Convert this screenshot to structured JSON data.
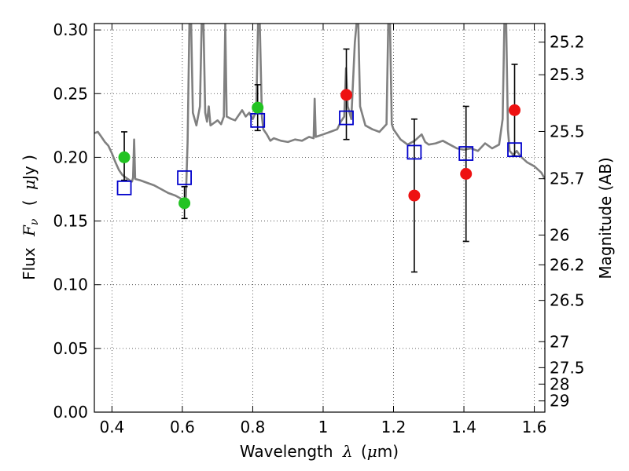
{
  "chart_data": {
    "type": "scatter",
    "xlabel_prefix": "Wavelength",
    "xlabel_symbol": "λ",
    "xlabel_unit_open": "(",
    "xlabel_unit_mu": "μ",
    "xlabel_unit_rest": "m)",
    "ylabel_prefix": "Flux",
    "ylabel_symbol": "F",
    "ylabel_subscript": "ν",
    "ylabel_unit_open": "(",
    "ylabel_unit_mu": "μ",
    "ylabel_unit_rest": "Jy )",
    "y2label": "Magnitude (AB)",
    "xlim": [
      0.35,
      1.63
    ],
    "ylim": [
      0.0,
      0.305
    ],
    "grid": true,
    "x_ticks": [
      0.4,
      0.6,
      0.8,
      1.0,
      1.2,
      1.4,
      1.6
    ],
    "x_tick_labels": [
      "0.4",
      "0.6",
      "0.8",
      "1",
      "1.2",
      "1.4",
      "1.6"
    ],
    "y_ticks": [
      0.0,
      0.05,
      0.1,
      0.15,
      0.2,
      0.25,
      0.3
    ],
    "y_tick_labels": [
      "0.00",
      "0.05",
      "0.10",
      "0.15",
      "0.20",
      "0.25",
      "0.30"
    ],
    "y2_ticks": [
      {
        "label": "25.2",
        "flux": 0.2904
      },
      {
        "label": "25.3",
        "flux": 0.2648
      },
      {
        "label": "25.5",
        "flux": 0.2203
      },
      {
        "label": "25.7",
        "flux": 0.1832
      },
      {
        "label": "26",
        "flux": 0.139
      },
      {
        "label": "26.2",
        "flux": 0.1156
      },
      {
        "label": "26.5",
        "flux": 0.0877
      },
      {
        "label": "27",
        "flux": 0.0553
      },
      {
        "label": "27.5",
        "flux": 0.0349
      },
      {
        "label": "28",
        "flux": 0.022
      },
      {
        "label": "29",
        "flux": 0.0088
      }
    ],
    "observed_green": {
      "color": "#22c322",
      "points": [
        {
          "x": 0.435,
          "y": 0.2,
          "err_lo": 0.018,
          "err_hi": 0.02
        },
        {
          "x": 0.606,
          "y": 0.164,
          "err_lo": 0.012,
          "err_hi": 0.013
        },
        {
          "x": 0.814,
          "y": 0.239,
          "err_lo": 0.018,
          "err_hi": 0.018
        }
      ]
    },
    "observed_red": {
      "color": "#ee1111",
      "points": [
        {
          "x": 1.066,
          "y": 0.249,
          "err_lo": 0.035,
          "err_hi": 0.036
        },
        {
          "x": 1.259,
          "y": 0.17,
          "err_lo": 0.06,
          "err_hi": 0.06
        },
        {
          "x": 1.406,
          "y": 0.187,
          "err_lo": 0.053,
          "err_hi": 0.053
        },
        {
          "x": 1.544,
          "y": 0.237,
          "err_lo": 0.036,
          "err_hi": 0.036
        }
      ]
    },
    "model_squares": {
      "color": "#0000cc",
      "points": [
        {
          "x": 0.435,
          "y": 0.176
        },
        {
          "x": 0.606,
          "y": 0.184
        },
        {
          "x": 0.814,
          "y": 0.229
        },
        {
          "x": 1.066,
          "y": 0.231
        },
        {
          "x": 1.259,
          "y": 0.204
        },
        {
          "x": 1.406,
          "y": 0.203
        },
        {
          "x": 1.544,
          "y": 0.206
        }
      ]
    },
    "model_spectrum": {
      "color": "#808080",
      "points": [
        [
          0.35,
          0.219
        ],
        [
          0.36,
          0.22
        ],
        [
          0.37,
          0.216
        ],
        [
          0.38,
          0.212
        ],
        [
          0.39,
          0.209
        ],
        [
          0.4,
          0.203
        ],
        [
          0.41,
          0.196
        ],
        [
          0.42,
          0.19
        ],
        [
          0.43,
          0.186
        ],
        [
          0.44,
          0.184
        ],
        [
          0.45,
          0.182
        ],
        [
          0.457,
          0.181
        ],
        [
          0.46,
          0.184
        ],
        [
          0.463,
          0.214
        ],
        [
          0.466,
          0.183
        ],
        [
          0.48,
          0.182
        ],
        [
          0.5,
          0.18
        ],
        [
          0.52,
          0.178
        ],
        [
          0.54,
          0.175
        ],
        [
          0.56,
          0.172
        ],
        [
          0.58,
          0.17
        ],
        [
          0.6,
          0.167
        ],
        [
          0.605,
          0.164
        ],
        [
          0.61,
          0.168
        ],
        [
          0.615,
          0.212
        ],
        [
          0.62,
          0.305
        ],
        [
          0.625,
          0.305
        ],
        [
          0.63,
          0.235
        ],
        [
          0.64,
          0.225
        ],
        [
          0.65,
          0.24
        ],
        [
          0.655,
          0.305
        ],
        [
          0.66,
          0.305
        ],
        [
          0.665,
          0.235
        ],
        [
          0.67,
          0.228
        ],
        [
          0.675,
          0.24
        ],
        [
          0.68,
          0.225
        ],
        [
          0.7,
          0.229
        ],
        [
          0.71,
          0.226
        ],
        [
          0.718,
          0.232
        ],
        [
          0.722,
          0.305
        ],
        [
          0.726,
          0.232
        ],
        [
          0.74,
          0.23
        ],
        [
          0.75,
          0.229
        ],
        [
          0.76,
          0.233
        ],
        [
          0.77,
          0.237
        ],
        [
          0.78,
          0.232
        ],
        [
          0.79,
          0.235
        ],
        [
          0.8,
          0.23
        ],
        [
          0.81,
          0.236
        ],
        [
          0.815,
          0.305
        ],
        [
          0.82,
          0.305
        ],
        [
          0.826,
          0.232
        ],
        [
          0.83,
          0.222
        ],
        [
          0.84,
          0.218
        ],
        [
          0.85,
          0.213
        ],
        [
          0.86,
          0.215
        ],
        [
          0.88,
          0.213
        ],
        [
          0.9,
          0.212
        ],
        [
          0.92,
          0.214
        ],
        [
          0.94,
          0.213
        ],
        [
          0.96,
          0.216
        ],
        [
          0.973,
          0.215
        ],
        [
          0.976,
          0.246
        ],
        [
          0.979,
          0.216
        ],
        [
          1.0,
          0.218
        ],
        [
          1.02,
          0.22
        ],
        [
          1.04,
          0.222
        ],
        [
          1.05,
          0.228
        ],
        [
          1.06,
          0.232
        ],
        [
          1.065,
          0.27
        ],
        [
          1.07,
          0.24
        ],
        [
          1.08,
          0.23
        ],
        [
          1.09,
          0.29
        ],
        [
          1.095,
          0.305
        ],
        [
          1.1,
          0.305
        ],
        [
          1.105,
          0.24
        ],
        [
          1.12,
          0.225
        ],
        [
          1.14,
          0.222
        ],
        [
          1.16,
          0.22
        ],
        [
          1.18,
          0.226
        ],
        [
          1.185,
          0.305
        ],
        [
          1.19,
          0.305
        ],
        [
          1.195,
          0.226
        ],
        [
          1.2,
          0.222
        ],
        [
          1.22,
          0.214
        ],
        [
          1.24,
          0.21
        ],
        [
          1.26,
          0.213
        ],
        [
          1.28,
          0.218
        ],
        [
          1.29,
          0.212
        ],
        [
          1.3,
          0.21
        ],
        [
          1.32,
          0.211
        ],
        [
          1.34,
          0.213
        ],
        [
          1.36,
          0.21
        ],
        [
          1.38,
          0.207
        ],
        [
          1.4,
          0.206
        ],
        [
          1.42,
          0.207
        ],
        [
          1.44,
          0.205
        ],
        [
          1.46,
          0.211
        ],
        [
          1.48,
          0.207
        ],
        [
          1.5,
          0.21
        ],
        [
          1.51,
          0.23
        ],
        [
          1.515,
          0.305
        ],
        [
          1.52,
          0.305
        ],
        [
          1.525,
          0.222
        ],
        [
          1.53,
          0.205
        ],
        [
          1.54,
          0.202
        ],
        [
          1.55,
          0.205
        ],
        [
          1.56,
          0.201
        ],
        [
          1.58,
          0.196
        ],
        [
          1.6,
          0.193
        ],
        [
          1.62,
          0.188
        ],
        [
          1.63,
          0.183
        ]
      ]
    }
  }
}
